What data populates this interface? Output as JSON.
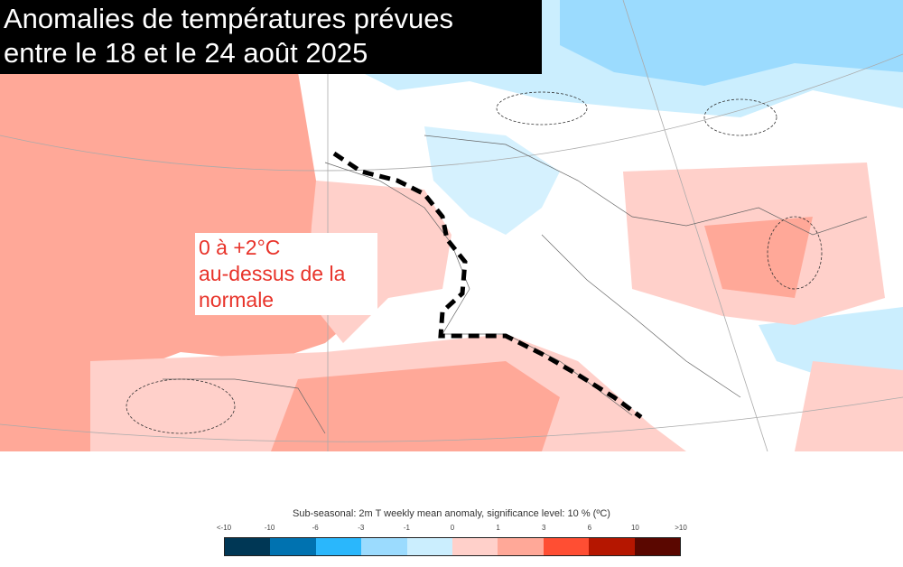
{
  "title": {
    "line1": "Anomalies de températures prévues",
    "line2": "entre le 18 et le 24 août 2025"
  },
  "callout": {
    "line1": "0 à +2°C",
    "line2": "au-dessus de la",
    "line3": "normale"
  },
  "legend": {
    "title": "Sub-seasonal: 2m T weekly mean anomaly, significance level: 10 % (ºC)",
    "ticks": [
      "<-10",
      "-10",
      "-6",
      "-3",
      "-1",
      "0",
      "1",
      "3",
      "6",
      "10",
      ">10"
    ],
    "colors": [
      "#003755",
      "#0072b0",
      "#2ab7fc",
      "#9bdbfe",
      "#cbeefe",
      "#ffd0ca",
      "#ffa898",
      "#ff4e33",
      "#b51600",
      "#5a0700"
    ]
  },
  "map_colors": {
    "warm1": "#ffd0ca",
    "warm2": "#ffa898",
    "cool1": "#cbeefe",
    "cool2": "#9bdbfe",
    "land": "#ffffff"
  }
}
